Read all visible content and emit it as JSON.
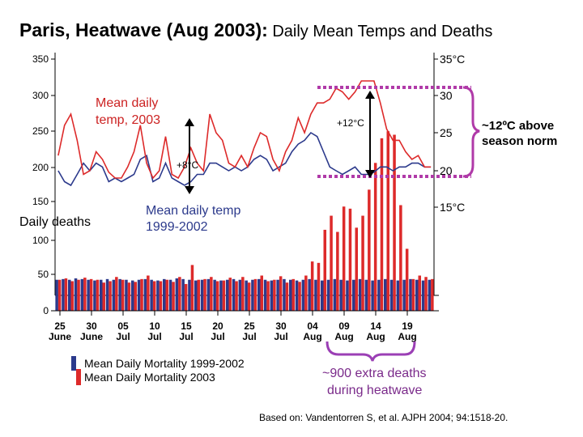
{
  "title_bold": "Paris, Heatwave (Aug 2003):",
  "title_rest": " Daily Mean Temps and Deaths",
  "footnote": "Based on:  Vandentorren S, et al. AJPH 2004; 94:1518-20.",
  "annotations": {
    "mean_temp_2003": [
      "Mean daily",
      "temp, 2003"
    ],
    "mean_temp_1999": [
      "Mean daily temp",
      "1999-2002"
    ],
    "daily_deaths": "Daily deaths",
    "plus8": "+8°C",
    "plus12": "+12°C",
    "above_norm": [
      "~12ºC above",
      "season norm"
    ],
    "extra_deaths": [
      "~900 extra deaths",
      "during heatwave"
    ]
  },
  "legend": {
    "baseline": "Mean Daily Mortality 1999-2002",
    "y2003": "Mean Daily Mortality 2003"
  },
  "colors": {
    "red": "#dd2a2a",
    "blue": "#2c3a8c",
    "purple": "#9b3fb5",
    "magenta": "#b03aa8"
  },
  "chart_data": {
    "type": "bar",
    "left_axis": {
      "ticks": [
        0,
        50,
        100,
        150,
        200,
        250,
        300,
        350
      ],
      "tick_labels": [
        "0",
        "50",
        "100",
        "150",
        "200",
        "250",
        "300",
        "350"
      ],
      "ylim": [
        0,
        350
      ]
    },
    "right_axis": {
      "ticks": [
        15,
        20,
        25,
        30,
        35
      ],
      "tick_labels": [
        "15°C",
        "20",
        "25",
        "30",
        "35°C"
      ],
      "ylim": [
        15,
        35
      ]
    },
    "x_tick_labels": [
      {
        "day": "25",
        "month": "June",
        "index": 0
      },
      {
        "day": "30",
        "month": "June",
        "index": 5
      },
      {
        "day": "05",
        "month": "Jul",
        "index": 10
      },
      {
        "day": "10",
        "month": "Jul",
        "index": 15
      },
      {
        "day": "15",
        "month": "Jul",
        "index": 20
      },
      {
        "day": "20",
        "month": "Jul",
        "index": 25
      },
      {
        "day": "25",
        "month": "Jul",
        "index": 30
      },
      {
        "day": "30",
        "month": "Jul",
        "index": 35
      },
      {
        "day": "04",
        "month": "Aug",
        "index": 40
      },
      {
        "day": "09",
        "month": "Aug",
        "index": 45
      },
      {
        "day": "14",
        "month": "Aug",
        "index": 50
      },
      {
        "day": "19",
        "month": "Aug",
        "index": 55
      }
    ],
    "series": [
      {
        "name": "Mean Daily Mortality 1999-2002",
        "axis": "left",
        "values": [
          44,
          45,
          44,
          46,
          45,
          44,
          43,
          44,
          45,
          44,
          45,
          44,
          43,
          44,
          45,
          44,
          43,
          45,
          44,
          46,
          45,
          44,
          43,
          44,
          45,
          44,
          43,
          44,
          45,
          44,
          43,
          44,
          45,
          44,
          43,
          44,
          45,
          44,
          43,
          44,
          45,
          44,
          43,
          44,
          45,
          44,
          43,
          44,
          45,
          44,
          43,
          44,
          45,
          44,
          43,
          44,
          45,
          44,
          43,
          44
        ]
      },
      {
        "name": "Mean Daily Mortality 2003",
        "axis": "left",
        "values": [
          44,
          46,
          42,
          44,
          47,
          45,
          44,
          40,
          42,
          48,
          44,
          40,
          41,
          45,
          50,
          42,
          42,
          44,
          41,
          48,
          38,
          65,
          44,
          45,
          48,
          42,
          43,
          47,
          42,
          48,
          40,
          45,
          50,
          42,
          44,
          49,
          40,
          45,
          41,
          50,
          70,
          68,
          115,
          135,
          112,
          148,
          145,
          118,
          135,
          172,
          210,
          245,
          255,
          250,
          150,
          88,
          45,
          50,
          48,
          45
        ]
      },
      {
        "name": "Mean daily temp, 2003",
        "axis": "right",
        "values": [
          22.0,
          26.0,
          27.5,
          24.0,
          19.5,
          20.0,
          22.5,
          21.5,
          19.8,
          19.0,
          19.0,
          20.5,
          22.5,
          26.0,
          21.0,
          19.0,
          20.0,
          24.5,
          19.5,
          19.0,
          20.5,
          23.0,
          21.0,
          20.0,
          27.5,
          25.0,
          24.0,
          21.0,
          20.5,
          22.0,
          20.5,
          23.0,
          25.0,
          24.5,
          21.5,
          20.0,
          22.5,
          24.0,
          27.0,
          25.0,
          27.5,
          29.0,
          29.0,
          29.5,
          31.0,
          30.5,
          29.5,
          30.5,
          32.0,
          32.0,
          32.0,
          29.0,
          25.5,
          24.0,
          24.0,
          22.5,
          21.5,
          22.0,
          20.5,
          20.5
        ]
      },
      {
        "name": "Mean daily temp 1999-2002",
        "axis": "right",
        "values": [
          20.0,
          18.5,
          18.0,
          19.5,
          21.0,
          20.0,
          21.0,
          20.5,
          18.5,
          19.0,
          18.5,
          19.0,
          19.5,
          21.5,
          22.0,
          18.5,
          19.0,
          21.0,
          19.0,
          18.5,
          18.0,
          18.5,
          19.5,
          19.5,
          21.0,
          21.0,
          20.5,
          20.0,
          20.5,
          20.0,
          20.5,
          21.5,
          22.0,
          21.5,
          20.0,
          20.5,
          21.0,
          22.5,
          23.5,
          24.0,
          25.0,
          24.5,
          22.5,
          20.5,
          20.0,
          19.5,
          20.0,
          20.5,
          19.5,
          19.5,
          19.8,
          20.5,
          20.5,
          20.0,
          20.5,
          20.5,
          21.0,
          21.0,
          20.5,
          20.5
        ]
      }
    ]
  }
}
